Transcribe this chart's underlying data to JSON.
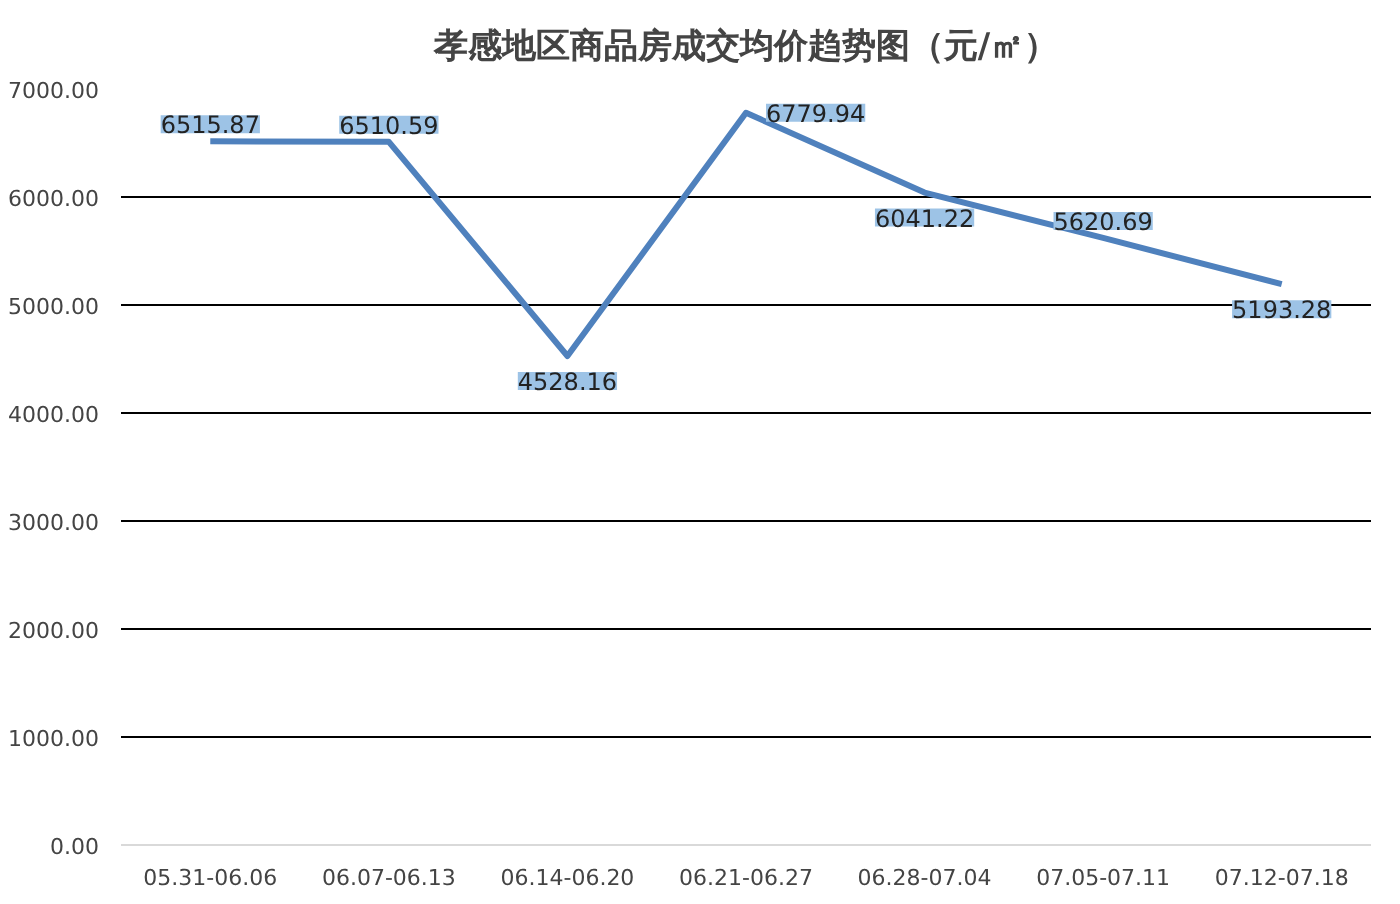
{
  "chart_data": {
    "type": "line",
    "title": "孝感地区商品房成交均价趋势图（元/㎡）",
    "categories": [
      "05.31-06.06",
      "06.07-06.13",
      "06.14-06.20",
      "06.21-06.27",
      "06.28-07.04",
      "07.05-07.11",
      "07.12-07.18"
    ],
    "series": [
      {
        "color": "#4f81bd",
        "values": [
          6515.87,
          6510.59,
          4528.16,
          6779.94,
          6041.22,
          5620.69,
          5193.28
        ]
      }
    ],
    "ylim": [
      0,
      7000
    ],
    "yticks": [
      {
        "value": 0,
        "label": "0.00"
      },
      {
        "value": 1000,
        "label": "1000.00"
      },
      {
        "value": 2000,
        "label": "2000.00"
      },
      {
        "value": 3000,
        "label": "3000.00"
      },
      {
        "value": 4000,
        "label": "4000.00"
      },
      {
        "value": 5000,
        "label": "5000.00"
      },
      {
        "value": 6000,
        "label": "6000.00"
      },
      {
        "value": 7000,
        "label": "7000.00"
      }
    ],
    "grid": "y",
    "data_labels": true,
    "marker": "none",
    "line_style": "solid"
  }
}
